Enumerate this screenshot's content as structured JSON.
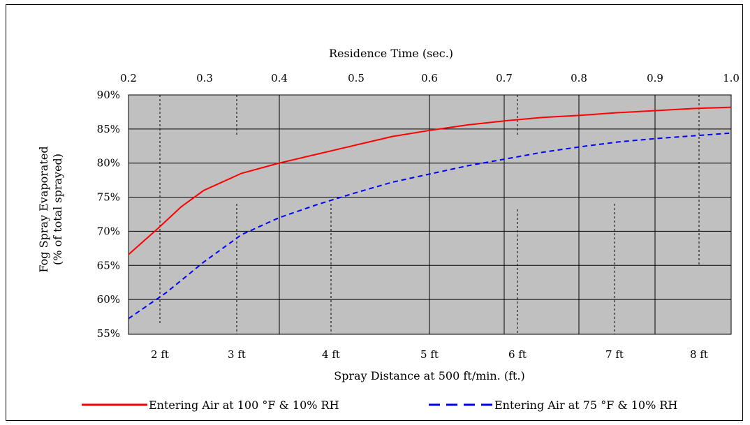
{
  "chart_data": {
    "type": "line",
    "title": "",
    "top_axis_label": "Residence Time (sec.)",
    "top_ticks": [
      "0.2",
      "0.3",
      "0.4",
      "0.5",
      "0.6",
      "0.7",
      "0.8",
      "0.9",
      "1.0"
    ],
    "xlabel": "Spray Distance at 500 ft/min. (ft.)",
    "x_ticks": [
      "2 ft",
      "3 ft",
      "4 ft",
      "5 ft",
      "6 ft",
      "7 ft",
      "8 ft"
    ],
    "ylabel": "Fog Spray Evaporated",
    "ylabel2": "(% of total sprayed)",
    "y_ticks": [
      "90%",
      "85%",
      "80%",
      "75%",
      "70%",
      "65%",
      "60%",
      "55%"
    ],
    "xlim": [
      0.2,
      1.0
    ],
    "ylim": [
      54,
      90
    ],
    "grid": true,
    "legend_position": "bottom",
    "plot_background": "#c0c0c0",
    "series": [
      {
        "name": "Entering Air at 100  °F & 10% RH",
        "color": "#ff0000",
        "style": "solid",
        "x": [
          0.2,
          0.24,
          0.27,
          0.3,
          0.35,
          0.4,
          0.45,
          0.5,
          0.55,
          0.6,
          0.65,
          0.7,
          0.75,
          0.8,
          0.85,
          0.9,
          0.95,
          1.0
        ],
        "y": [
          66.6,
          70.5,
          73.6,
          76.0,
          78.5,
          80.0,
          81.3,
          82.6,
          83.9,
          84.8,
          85.6,
          86.2,
          86.7,
          87.0,
          87.4,
          87.7,
          88.0,
          88.2
        ]
      },
      {
        "name": "Entering Air at 75  °F & 10% RH",
        "color": "#0000ff",
        "style": "dashed",
        "x": [
          0.2,
          0.25,
          0.3,
          0.35,
          0.4,
          0.45,
          0.5,
          0.55,
          0.6,
          0.65,
          0.7,
          0.75,
          0.8,
          0.85,
          0.9,
          0.95,
          1.0
        ],
        "y": [
          57.2,
          61.0,
          65.5,
          69.5,
          72.0,
          73.9,
          75.6,
          77.2,
          78.4,
          79.6,
          80.6,
          81.6,
          82.4,
          83.1,
          83.6,
          84.0,
          84.4
        ]
      }
    ]
  }
}
